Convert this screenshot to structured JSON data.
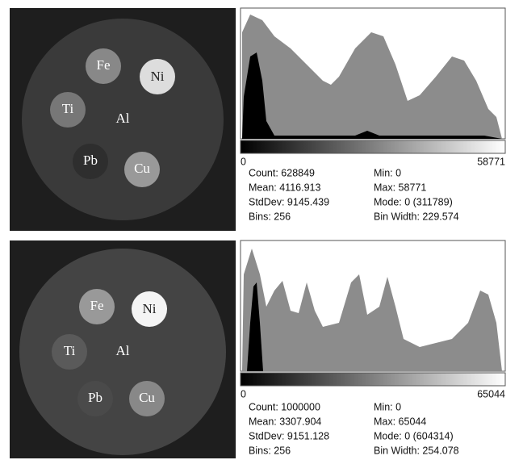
{
  "panels": [
    {
      "image_labels": [
        "Fe",
        "Ni",
        "Ti",
        "Al",
        "Pb",
        "Cu"
      ],
      "axis_min": "0",
      "axis_max": "58771",
      "stats": [
        [
          "Count: 628849",
          "Min: 0"
        ],
        [
          "Mean: 4116.913",
          "Max: 58771"
        ],
        [
          "StdDev: 9145.439",
          "Mode: 0 (311789)"
        ],
        [
          "Bins: 256",
          "Bin Width: 229.574"
        ]
      ]
    },
    {
      "image_labels": [
        "Fe",
        "Ni",
        "Ti",
        "Al",
        "Pb",
        "Cu"
      ],
      "axis_min": "0",
      "axis_max": "65044",
      "stats": [
        [
          "Count: 1000000",
          "Min: 0"
        ],
        [
          "Mean: 3307.904",
          "Max: 65044"
        ],
        [
          "StdDev: 9151.128",
          "Mode: 0 (604314)"
        ],
        [
          "Bins: 256",
          "Bin Width: 254.078"
        ]
      ]
    }
  ]
}
